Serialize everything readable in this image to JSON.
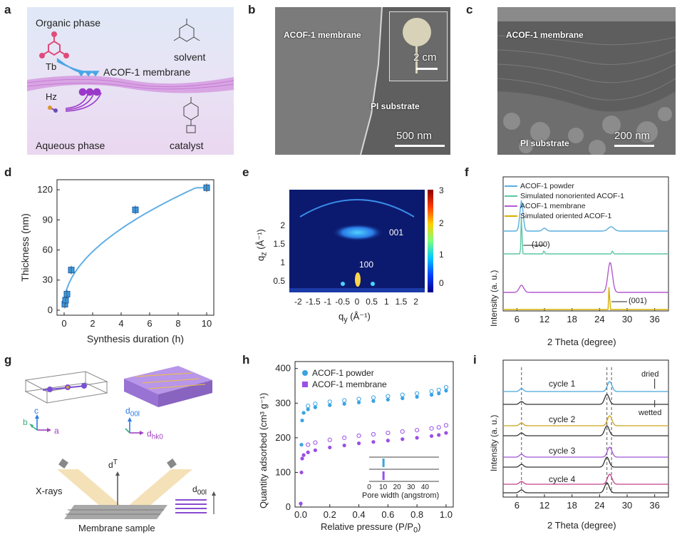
{
  "panel_labels": [
    "a",
    "b",
    "c",
    "d",
    "e",
    "f",
    "g",
    "h",
    "i"
  ],
  "panel_a": {
    "organic_phase": "Organic phase",
    "aqueous_phase": "Aqueous phase",
    "tb": "Tb",
    "hz": "Hz",
    "membrane": "ACOF-1 membrane",
    "solvent": "solvent",
    "catalyst": "catalyst"
  },
  "panel_b": {
    "membrane": "ACOF-1 membrane",
    "substrate": "PI substrate",
    "scale_main": "500 nm",
    "scale_inset": "2 cm"
  },
  "panel_c": {
    "membrane": "ACOF-1 membrane",
    "substrate": "PI substrate",
    "scale": "200 nm"
  },
  "panel_e": {
    "xlabel": "q",
    "xlabel_sub": "y",
    "xlabel_unit": "(Å⁻¹)",
    "ylabel": "q",
    "ylabel_sub": "z",
    "ylabel_unit": "(Å⁻¹)",
    "xticks": [
      "-2",
      "-1.5",
      "-1",
      "-0.5",
      "0",
      "0.5",
      "1",
      "1.5",
      "2"
    ],
    "yticks": [
      "0.5",
      "1",
      "1.5",
      "2"
    ],
    "cbticks": [
      "3",
      "2",
      "1",
      "0"
    ],
    "peak_001": "001",
    "peak_100": "100"
  },
  "panel_f": {
    "legend": [
      "ACOF-1 powder",
      "Simulated nonoriented ACOF-1",
      "ACOF-1 membrane",
      "Simulated oriented ACOF-1"
    ],
    "xlabel": "2 Theta (degree)",
    "ylabel": "Intensity (a. u.)",
    "xticks": [
      "6",
      "12",
      "18",
      "24",
      "30",
      "36"
    ],
    "ann_100": "(100)",
    "ann_001": "(001)",
    "colors": [
      "#5aaee0",
      "#5cc7a3",
      "#b35ad0",
      "#d4b100"
    ]
  },
  "panel_g": {
    "axis_c": "c",
    "axis_b": "b",
    "axis_a": "a",
    "d00l": "d",
    "d00l_sub": "00l",
    "dhk0": "d",
    "dhk0_sub": "hk0",
    "xrays": "X-rays",
    "dT": "d",
    "dT_sup": "T",
    "sample": "Membrane sample",
    "d00l_right": "d",
    "d00l_right_sub": "00l"
  },
  "panel_h": {
    "ylabel": "Quantity adsorbed (cm³ g⁻¹)",
    "xlabel": "Relative pressure (P/P",
    "xlabel_sub": "0",
    "xlabel_end": ")",
    "xticks": [
      "0.0",
      "0.2",
      "0.4",
      "0.6",
      "0.8",
      "1.0"
    ],
    "yticks": [
      "0",
      "100",
      "200",
      "300",
      "400"
    ],
    "legend": [
      "ACOF-1 powder",
      "ACOF-1 membrane"
    ],
    "inset_xlabel": "Pore width (angstrom)",
    "inset_xticks": [
      "0",
      "10",
      "20",
      "30",
      "40"
    ],
    "colors": [
      "#3aa3e3",
      "#9a4fe6"
    ]
  },
  "panel_i": {
    "cycles": [
      "cycle 1",
      "cycle 2",
      "cycle 3",
      "cycle 4"
    ],
    "dried": "dried",
    "wetted": "wetted",
    "xlabel": "2 Theta (degree)",
    "ylabel": "Intensity (a. u.)",
    "xticks": [
      "6",
      "12",
      "18",
      "24",
      "30",
      "36"
    ],
    "colors": [
      "#4aa6dc",
      "#cca21c",
      "#a055d6",
      "#c0408a"
    ]
  },
  "chart_data": [
    {
      "type": "scatter",
      "panel": "d",
      "xlabel": "Synthesis duration (h)",
      "ylabel": "Thickness (nm)",
      "xlim": [
        -0.5,
        10.5
      ],
      "ylim": [
        -5,
        130
      ],
      "xticks": [
        0,
        2,
        4,
        6,
        8,
        10
      ],
      "yticks": [
        0,
        30,
        60,
        90,
        120
      ],
      "color": "#3b9be0",
      "points": [
        {
          "x": 0.05,
          "y": 6
        },
        {
          "x": 0.1,
          "y": 10
        },
        {
          "x": 0.2,
          "y": 16
        },
        {
          "x": 0.5,
          "y": 40
        },
        {
          "x": 5,
          "y": 100
        },
        {
          "x": 10,
          "y": 122
        }
      ]
    },
    {
      "type": "line",
      "panel": "h",
      "xlim": [
        0,
        1.02
      ],
      "ylim": [
        0,
        420
      ],
      "series": [
        {
          "name": "ACOF-1 powder",
          "x": [
            0.0,
            0.005,
            0.01,
            0.02,
            0.05,
            0.1,
            0.2,
            0.3,
            0.4,
            0.5,
            0.6,
            0.7,
            0.8,
            0.9,
            0.95,
            1.0
          ],
          "y": [
            10,
            180,
            250,
            272,
            282,
            288,
            294,
            298,
            302,
            306,
            310,
            314,
            318,
            324,
            328,
            336
          ]
        },
        {
          "name": "ACOF-1 membrane",
          "x": [
            0.0,
            0.005,
            0.01,
            0.02,
            0.05,
            0.1,
            0.2,
            0.3,
            0.4,
            0.5,
            0.6,
            0.7,
            0.8,
            0.9,
            0.95,
            1.0
          ],
          "y": [
            10,
            100,
            140,
            150,
            158,
            164,
            172,
            178,
            184,
            188,
            192,
            196,
            200,
            205,
            208,
            214
          ]
        }
      ]
    }
  ]
}
